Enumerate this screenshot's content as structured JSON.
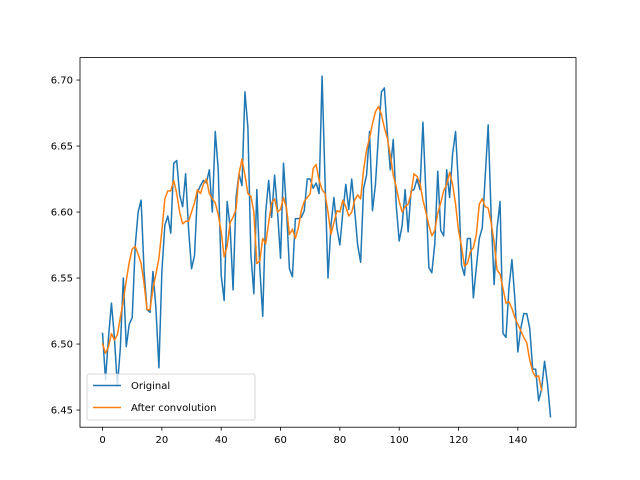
{
  "chart_data": {
    "type": "line",
    "title": "",
    "xlabel": "",
    "ylabel": "",
    "xlim": [
      -7.6,
      159.6
    ],
    "ylim": [
      6.437,
      6.717
    ],
    "x_ticks": [
      0,
      20,
      40,
      60,
      80,
      100,
      120,
      140
    ],
    "y_ticks": [
      6.45,
      6.5,
      6.55,
      6.6,
      6.65,
      6.7
    ],
    "x_tick_labels": [
      "0",
      "20",
      "40",
      "60",
      "80",
      "100",
      "120",
      "140"
    ],
    "y_tick_labels": [
      "6.45",
      "6.50",
      "6.55",
      "6.60",
      "6.65",
      "6.70"
    ],
    "grid": false,
    "legend_position": "lower-left",
    "series": [
      {
        "name": "Original",
        "color": "#1f77b4",
        "x_start": 0,
        "values": [
          6.508,
          6.473,
          6.505,
          6.531,
          6.505,
          6.468,
          6.497,
          6.55,
          6.498,
          6.515,
          6.52,
          6.574,
          6.6,
          6.609,
          6.555,
          6.526,
          6.524,
          6.555,
          6.527,
          6.482,
          6.555,
          6.59,
          6.597,
          6.584,
          6.637,
          6.639,
          6.613,
          6.604,
          6.629,
          6.587,
          6.557,
          6.567,
          6.615,
          6.62,
          6.624,
          6.622,
          6.632,
          6.6,
          6.661,
          6.632,
          6.552,
          6.533,
          6.608,
          6.589,
          6.541,
          6.611,
          6.629,
          6.62,
          6.691,
          6.664,
          6.568,
          6.538,
          6.617,
          6.558,
          6.521,
          6.6,
          6.624,
          6.596,
          6.628,
          6.6,
          6.565,
          6.637,
          6.602,
          6.557,
          6.551,
          6.595,
          6.595,
          6.596,
          6.601,
          6.625,
          6.625,
          6.618,
          6.622,
          6.614,
          6.703,
          6.624,
          6.55,
          6.59,
          6.611,
          6.588,
          6.575,
          6.6,
          6.621,
          6.602,
          6.625,
          6.601,
          6.575,
          6.562,
          6.618,
          6.628,
          6.661,
          6.601,
          6.621,
          6.658,
          6.691,
          6.694,
          6.66,
          6.632,
          6.655,
          6.605,
          6.578,
          6.59,
          6.617,
          6.585,
          6.616,
          6.617,
          6.625,
          6.617,
          6.668,
          6.614,
          6.558,
          6.554,
          6.576,
          6.631,
          6.586,
          6.582,
          6.632,
          6.611,
          6.644,
          6.661,
          6.619,
          6.56,
          6.552,
          6.58,
          6.58,
          6.535,
          6.558,
          6.58,
          6.588,
          6.627,
          6.666,
          6.597,
          6.545,
          6.588,
          6.608,
          6.508,
          6.505,
          6.543,
          6.564,
          6.534,
          6.494,
          6.512,
          6.523,
          6.523,
          6.512,
          6.481,
          6.481,
          6.457,
          6.466,
          6.487,
          6.47,
          6.445
        ]
      },
      {
        "name": "After convolution",
        "color": "#ff7f0e",
        "x_start": 0,
        "values": [
          6.5,
          6.493,
          6.498,
          6.508,
          6.503,
          6.507,
          6.52,
          6.533,
          6.548,
          6.562,
          6.572,
          6.574,
          6.568,
          6.561,
          6.546,
          6.526,
          6.526,
          6.542,
          6.553,
          6.565,
          6.586,
          6.61,
          6.616,
          6.616,
          6.624,
          6.614,
          6.6,
          6.591,
          6.593,
          6.593,
          6.6,
          6.607,
          6.617,
          6.614,
          6.621,
          6.625,
          6.614,
          6.61,
          6.607,
          6.598,
          6.585,
          6.566,
          6.574,
          6.592,
          6.596,
          6.602,
          6.629,
          6.64,
          6.628,
          6.614,
          6.612,
          6.6,
          6.561,
          6.563,
          6.58,
          6.576,
          6.592,
          6.607,
          6.61,
          6.6,
          6.602,
          6.611,
          6.603,
          6.583,
          6.587,
          6.58,
          6.588,
          6.601,
          6.608,
          6.611,
          6.614,
          6.633,
          6.636,
          6.624,
          6.617,
          6.614,
          6.6,
          6.583,
          6.592,
          6.601,
          6.6,
          6.609,
          6.604,
          6.597,
          6.6,
          6.609,
          6.613,
          6.61,
          6.632,
          6.647,
          6.656,
          6.667,
          6.676,
          6.68,
          6.674,
          6.664,
          6.656,
          6.643,
          6.628,
          6.619,
          6.608,
          6.6,
          6.604,
          6.606,
          6.614,
          6.629,
          6.627,
          6.622,
          6.609,
          6.6,
          6.59,
          6.582,
          6.586,
          6.599,
          6.607,
          6.616,
          6.621,
          6.63,
          6.621,
          6.606,
          6.586,
          6.574,
          6.559,
          6.561,
          6.57,
          6.573,
          6.583,
          6.606,
          6.61,
          6.604,
          6.603,
          6.592,
          6.577,
          6.556,
          6.553,
          6.542,
          6.531,
          6.532,
          6.527,
          6.52,
          6.515,
          6.51,
          6.505,
          6.501,
          6.488,
          6.479,
          6.475,
          6.476,
          6.465
        ]
      }
    ]
  }
}
